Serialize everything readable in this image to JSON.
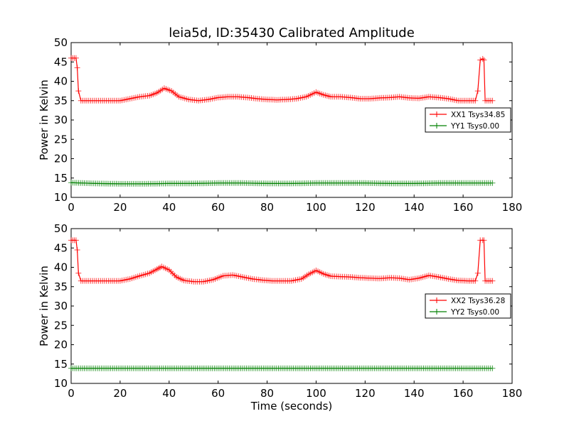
{
  "title": "leia5d, ID:35430 Calibrated Amplitude",
  "colors": {
    "xx": "#ff0000",
    "yy": "#008000"
  },
  "chart_data": [
    {
      "type": "line",
      "title": "leia5d, ID:35430 Calibrated Amplitude",
      "xlabel": "",
      "ylabel": "Power in Kelvin",
      "xlim": [
        0,
        180
      ],
      "ylim": [
        10,
        50
      ],
      "xticks": [
        0,
        20,
        40,
        60,
        80,
        100,
        120,
        140,
        160,
        180
      ],
      "yticks": [
        10,
        15,
        20,
        25,
        30,
        35,
        40,
        45,
        50
      ],
      "grid": false,
      "legend_position": "right",
      "marker": "+",
      "series": [
        {
          "name": "XX1 Tsys34.85",
          "color": "#ff0000",
          "x": [
            0,
            2,
            2.5,
            3,
            4,
            8,
            12,
            16,
            20,
            24,
            28,
            32,
            35,
            38,
            41,
            44,
            48,
            52,
            56,
            60,
            64,
            68,
            72,
            76,
            80,
            84,
            88,
            92,
            96,
            100,
            103,
            106,
            110,
            114,
            118,
            122,
            126,
            130,
            134,
            138,
            142,
            146,
            150,
            154,
            158,
            162,
            165,
            166,
            167,
            168,
            168.5,
            169,
            172
          ],
          "y": [
            46,
            46,
            43.5,
            37.5,
            35,
            35,
            35,
            35,
            35,
            35.5,
            36,
            36.3,
            37,
            38.2,
            37.5,
            36,
            35.3,
            35,
            35.3,
            35.8,
            36,
            36,
            35.8,
            35.5,
            35.3,
            35.2,
            35.3,
            35.5,
            36,
            37.2,
            36.5,
            36,
            36,
            35.8,
            35.5,
            35.5,
            35.7,
            35.8,
            36,
            35.7,
            35.6,
            36,
            35.8,
            35.5,
            35,
            35,
            35,
            37.5,
            45.5,
            45.8,
            45.5,
            35,
            35
          ]
        },
        {
          "name": "YY1 Tsys0.00",
          "color": "#008000",
          "x": [
            0,
            10,
            20,
            30,
            40,
            50,
            60,
            70,
            80,
            90,
            100,
            110,
            120,
            130,
            140,
            150,
            160,
            172
          ],
          "y": [
            13.8,
            13.6,
            13.5,
            13.5,
            13.6,
            13.6,
            13.7,
            13.7,
            13.6,
            13.6,
            13.7,
            13.7,
            13.7,
            13.6,
            13.6,
            13.7,
            13.7,
            13.7
          ]
        }
      ]
    },
    {
      "type": "line",
      "title": "",
      "xlabel": "Time (seconds)",
      "ylabel": "Power in Kelvin",
      "xlim": [
        0,
        180
      ],
      "ylim": [
        10,
        50
      ],
      "xticks": [
        0,
        20,
        40,
        60,
        80,
        100,
        120,
        140,
        160,
        180
      ],
      "yticks": [
        10,
        15,
        20,
        25,
        30,
        35,
        40,
        45,
        50
      ],
      "grid": false,
      "legend_position": "right",
      "marker": "+",
      "series": [
        {
          "name": "XX2 Tsys36.28",
          "color": "#ff0000",
          "x": [
            0,
            2,
            2.5,
            3,
            4,
            8,
            12,
            16,
            20,
            24,
            28,
            32,
            35,
            37,
            40,
            43,
            46,
            50,
            54,
            58,
            62,
            66,
            70,
            74,
            78,
            82,
            86,
            90,
            94,
            97,
            100,
            103,
            106,
            110,
            114,
            118,
            122,
            126,
            130,
            134,
            138,
            142,
            146,
            150,
            154,
            158,
            162,
            165,
            166,
            167,
            168,
            168.5,
            169,
            172
          ],
          "y": [
            47,
            47,
            44.5,
            38.5,
            36.5,
            36.5,
            36.5,
            36.5,
            36.5,
            37,
            37.8,
            38.5,
            39.5,
            40.2,
            39.3,
            37.5,
            36.6,
            36.3,
            36.3,
            36.8,
            37.8,
            38,
            37.5,
            37,
            36.7,
            36.5,
            36.5,
            36.5,
            37,
            38.2,
            39.2,
            38.3,
            37.7,
            37.6,
            37.5,
            37.3,
            37.2,
            37.1,
            37.3,
            37.2,
            36.8,
            37.2,
            37.9,
            37.5,
            37,
            36.6,
            36.5,
            36.5,
            38.5,
            47,
            47,
            47,
            36.5,
            36.5
          ]
        },
        {
          "name": "YY2 Tsys0.00",
          "color": "#008000",
          "x": [
            0,
            10,
            20,
            30,
            40,
            50,
            60,
            70,
            80,
            90,
            100,
            110,
            120,
            130,
            140,
            150,
            160,
            172
          ],
          "y": [
            13.9,
            13.9,
            13.9,
            13.9,
            13.9,
            13.9,
            13.9,
            13.9,
            13.9,
            13.9,
            13.9,
            13.9,
            13.9,
            13.9,
            13.9,
            13.9,
            13.9,
            13.9
          ]
        }
      ]
    }
  ]
}
